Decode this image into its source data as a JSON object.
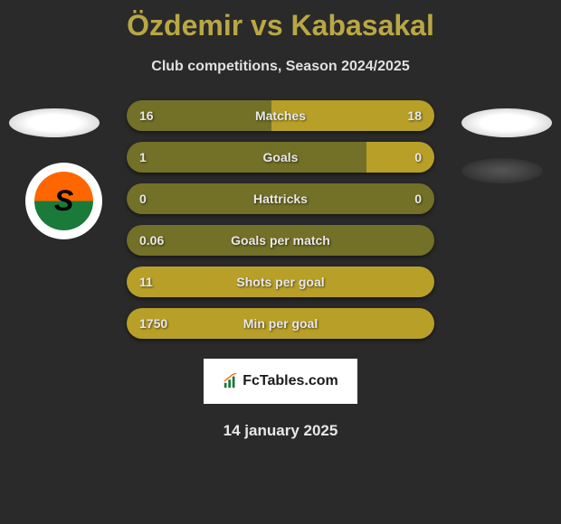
{
  "title": "Özdemir vs Kabasakal",
  "subtitle": "Club competitions, Season 2024/2025",
  "date": "14 january 2025",
  "fctables_label": "FcTables.com",
  "colors": {
    "background": "#2a2a2a",
    "accent": "#b8a844",
    "left_bar": "#737027",
    "right_bar_variant": "#b8a028",
    "text": "#e8e8e8"
  },
  "stats": [
    {
      "label": "Matches",
      "left_val": "16",
      "right_val": "18",
      "left_pct": 47,
      "left_color": "#737027",
      "right_color": "#b8a028"
    },
    {
      "label": "Goals",
      "left_val": "1",
      "right_val": "0",
      "left_pct": 78,
      "left_color": "#737027",
      "right_color": "#b8a028"
    },
    {
      "label": "Hattricks",
      "left_val": "0",
      "right_val": "0",
      "left_pct": 100,
      "left_color": "#737027",
      "right_color": "#737027"
    },
    {
      "label": "Goals per match",
      "left_val": "0.06",
      "right_val": "",
      "left_pct": 100,
      "left_color": "#737027",
      "right_color": "#737027"
    },
    {
      "label": "Shots per goal",
      "left_val": "11",
      "right_val": "",
      "left_pct": 100,
      "left_color": "#b8a028",
      "right_color": "#b8a028"
    },
    {
      "label": "Min per goal",
      "left_val": "1750",
      "right_val": "",
      "left_pct": 100,
      "left_color": "#b8a028",
      "right_color": "#b8a028"
    }
  ]
}
